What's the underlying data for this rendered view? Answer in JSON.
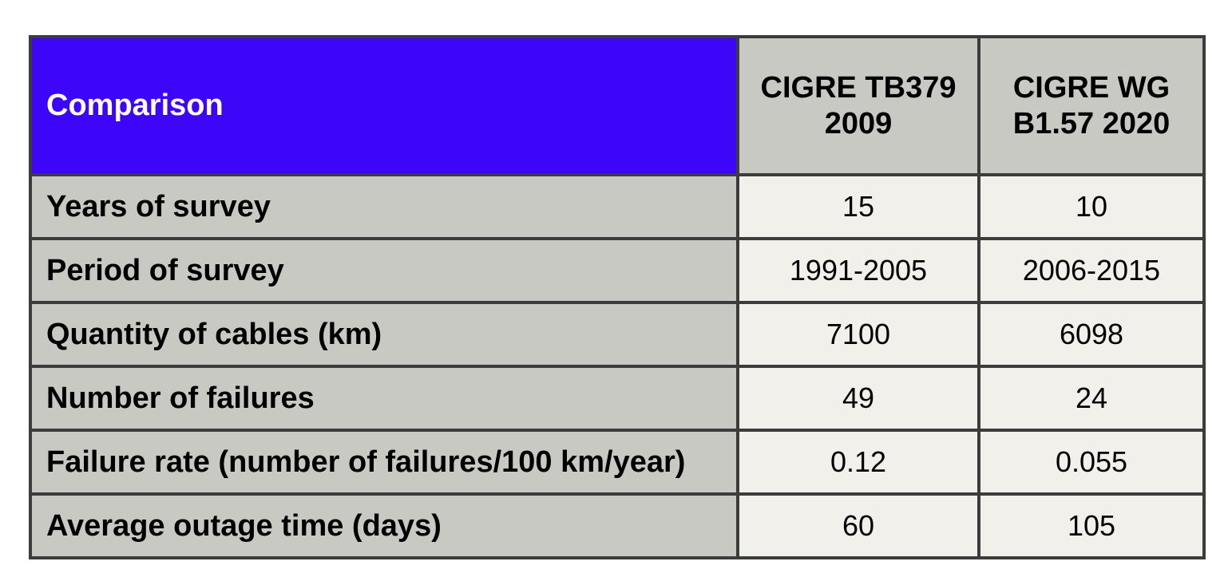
{
  "colors": {
    "corner_header_bg": "#3E06F9",
    "corner_header_text": "#FFFFFF",
    "header_label_bg": "#C9C9C4",
    "value_cell_bg": "#F1F0EA",
    "border": "#3C3C3C",
    "body_text": "#000000"
  },
  "table": {
    "corner_label": "Comparison",
    "columns": [
      "CIGRE TB379 2009",
      "CIGRE WG B1.57 2020"
    ],
    "rows": [
      {
        "label": "Years of survey",
        "values": [
          "15",
          "10"
        ]
      },
      {
        "label": "Period of survey",
        "values": [
          "1991-2005",
          "2006-2015"
        ]
      },
      {
        "label": "Quantity of cables (km)",
        "values": [
          "7100",
          "6098"
        ]
      },
      {
        "label": "Number of failures",
        "values": [
          "49",
          "24"
        ]
      },
      {
        "label": "Failure rate (number of failures/100 km/year)",
        "values": [
          "0.12",
          "0.055"
        ]
      },
      {
        "label": "Average outage time (days)",
        "values": [
          "60",
          "105"
        ]
      }
    ]
  },
  "chart_data": {
    "type": "table",
    "title": "Comparison",
    "columns": [
      "Comparison",
      "CIGRE TB379 2009",
      "CIGRE WG B1.57 2020"
    ],
    "rows": [
      [
        "Years of survey",
        15,
        10
      ],
      [
        "Period of survey",
        "1991-2005",
        "2006-2015"
      ],
      [
        "Quantity of cables (km)",
        7100,
        6098
      ],
      [
        "Number of failures",
        49,
        24
      ],
      [
        "Failure rate (number of failures/100 km/year)",
        0.12,
        0.055
      ],
      [
        "Average outage time (days)",
        60,
        105
      ]
    ],
    "layout": {
      "grid": "on",
      "header_row": true,
      "label_column": true
    }
  }
}
